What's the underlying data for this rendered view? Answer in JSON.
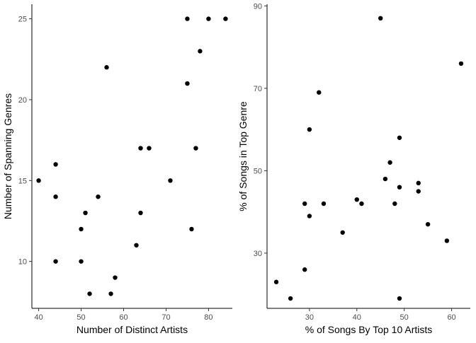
{
  "chart_data": [
    {
      "type": "scatter",
      "title": "",
      "xlabel": "Number of Distinct Artists",
      "ylabel": "Number of Spanning Genres",
      "xlim": [
        38.4,
        85.6
      ],
      "ylim": [
        7.1,
        25.9
      ],
      "xticks": [
        40,
        50,
        60,
        70,
        80
      ],
      "yticks": [
        10,
        15,
        20,
        25
      ],
      "grid": false,
      "point_color": "#000000",
      "points": [
        {
          "x": 40,
          "y": 15
        },
        {
          "x": 44,
          "y": 16
        },
        {
          "x": 44,
          "y": 14
        },
        {
          "x": 44,
          "y": 10
        },
        {
          "x": 50,
          "y": 12
        },
        {
          "x": 50,
          "y": 10
        },
        {
          "x": 51,
          "y": 13
        },
        {
          "x": 52,
          "y": 8
        },
        {
          "x": 54,
          "y": 14
        },
        {
          "x": 56,
          "y": 22
        },
        {
          "x": 57,
          "y": 8
        },
        {
          "x": 58,
          "y": 9
        },
        {
          "x": 63,
          "y": 11
        },
        {
          "x": 64,
          "y": 17
        },
        {
          "x": 64,
          "y": 13
        },
        {
          "x": 66,
          "y": 17
        },
        {
          "x": 71,
          "y": 15
        },
        {
          "x": 75,
          "y": 25
        },
        {
          "x": 75,
          "y": 21
        },
        {
          "x": 76,
          "y": 12
        },
        {
          "x": 77,
          "y": 17
        },
        {
          "x": 78,
          "y": 23
        },
        {
          "x": 80,
          "y": 25
        },
        {
          "x": 84,
          "y": 25
        }
      ]
    },
    {
      "type": "scatter",
      "title": "",
      "xlabel": "% of Songs By Top 10 Artists",
      "ylabel": "% of Songs in Top Genre",
      "xlim": [
        21.05,
        63.95
      ],
      "ylim": [
        16.6,
        90.4
      ],
      "xticks": [
        30,
        40,
        50,
        60
      ],
      "yticks": [
        30,
        50,
        70,
        90
      ],
      "grid": false,
      "point_color": "#000000",
      "points": [
        {
          "x": 23,
          "y": 23
        },
        {
          "x": 26,
          "y": 19
        },
        {
          "x": 29,
          "y": 42
        },
        {
          "x": 29,
          "y": 26
        },
        {
          "x": 30,
          "y": 60
        },
        {
          "x": 30,
          "y": 39
        },
        {
          "x": 32,
          "y": 69
        },
        {
          "x": 33,
          "y": 42
        },
        {
          "x": 37,
          "y": 35
        },
        {
          "x": 40,
          "y": 43
        },
        {
          "x": 41,
          "y": 42
        },
        {
          "x": 45,
          "y": 87
        },
        {
          "x": 46,
          "y": 48
        },
        {
          "x": 47,
          "y": 52
        },
        {
          "x": 48,
          "y": 42
        },
        {
          "x": 49,
          "y": 58
        },
        {
          "x": 49,
          "y": 46
        },
        {
          "x": 49,
          "y": 19
        },
        {
          "x": 53,
          "y": 47
        },
        {
          "x": 53,
          "y": 45
        },
        {
          "x": 55,
          "y": 37
        },
        {
          "x": 59,
          "y": 33
        },
        {
          "x": 62,
          "y": 76
        }
      ]
    }
  ]
}
